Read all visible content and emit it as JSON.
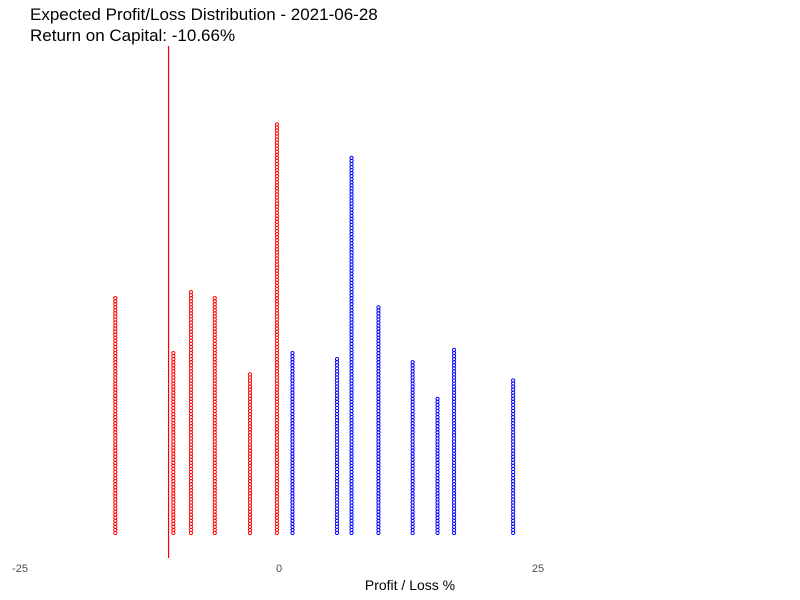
{
  "chart_data": {
    "type": "scatter",
    "title": "Expected Profit/Loss Distribution - 2021-06-28",
    "subtitle": "Return on Capital: -10.66%",
    "xlabel": "Profit / Loss %",
    "ylabel": "",
    "xlim": [
      -25,
      50
    ],
    "x_ticks": [
      -25,
      0,
      25
    ],
    "x_tick_labels": [
      "-25",
      "0",
      "25"
    ],
    "grid": false,
    "legend": "none",
    "reference_line": {
      "x": -10.66,
      "color": "#ff0000"
    },
    "colors": {
      "loss": "#ff0000",
      "profit": "#0000ff"
    },
    "marker": "open-circle",
    "series": [
      {
        "color": "#ff0000",
        "points": [
          {
            "x": -15.8,
            "count": 78
          },
          {
            "x": -10.2,
            "count": 60
          },
          {
            "x": -8.5,
            "count": 80
          },
          {
            "x": -6.2,
            "count": 78
          },
          {
            "x": -2.8,
            "count": 53
          },
          {
            "x": -0.2,
            "count": 135
          }
        ]
      },
      {
        "color": "#0000ff",
        "points": [
          {
            "x": 1.3,
            "count": 60
          },
          {
            "x": 5.6,
            "count": 58
          },
          {
            "x": 7.0,
            "count": 124
          },
          {
            "x": 9.6,
            "count": 75
          },
          {
            "x": 12.9,
            "count": 57
          },
          {
            "x": 15.3,
            "count": 45
          },
          {
            "x": 16.9,
            "count": 61
          },
          {
            "x": 22.6,
            "count": 51
          }
        ]
      }
    ]
  }
}
